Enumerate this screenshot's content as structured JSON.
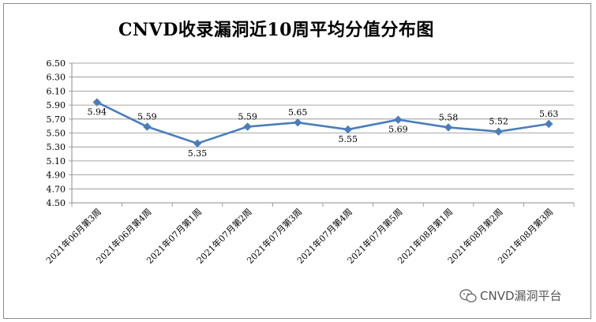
{
  "chart_data": {
    "type": "line",
    "title": "CNVD收录漏洞近10周平均分值分布图",
    "categories": [
      "2021年06月第3周",
      "2021年06月第4周",
      "2021年07月第1周",
      "2021年07月第2周",
      "2021年07月第3周",
      "2021年07月第4周",
      "2021年07月第5周",
      "2021年08月第1周",
      "2021年08月第2周",
      "2021年08月第3周"
    ],
    "values": [
      5.94,
      5.59,
      5.35,
      5.59,
      5.65,
      5.55,
      5.69,
      5.58,
      5.52,
      5.63
    ],
    "value_labels": [
      "5.94",
      "5.59",
      "5.35",
      "5.59",
      "5.65",
      "5.55",
      "5.69",
      "5.58",
      "5.52",
      "5.63"
    ],
    "label_positions": [
      "below",
      "above",
      "below",
      "above",
      "above",
      "below",
      "below",
      "above",
      "above",
      "above"
    ],
    "y_ticks": [
      "6.50",
      "6.30",
      "6.10",
      "5.90",
      "5.70",
      "5.50",
      "5.30",
      "5.10",
      "4.90",
      "4.70",
      "4.50"
    ],
    "ylim": [
      4.5,
      6.5
    ],
    "ytick_step": 0.2,
    "grid": true,
    "series_color": "#4a7ebb",
    "xlabel": "",
    "ylabel": ""
  },
  "watermark": {
    "text": "CNVD漏洞平台",
    "icon": "wechat-icon"
  }
}
